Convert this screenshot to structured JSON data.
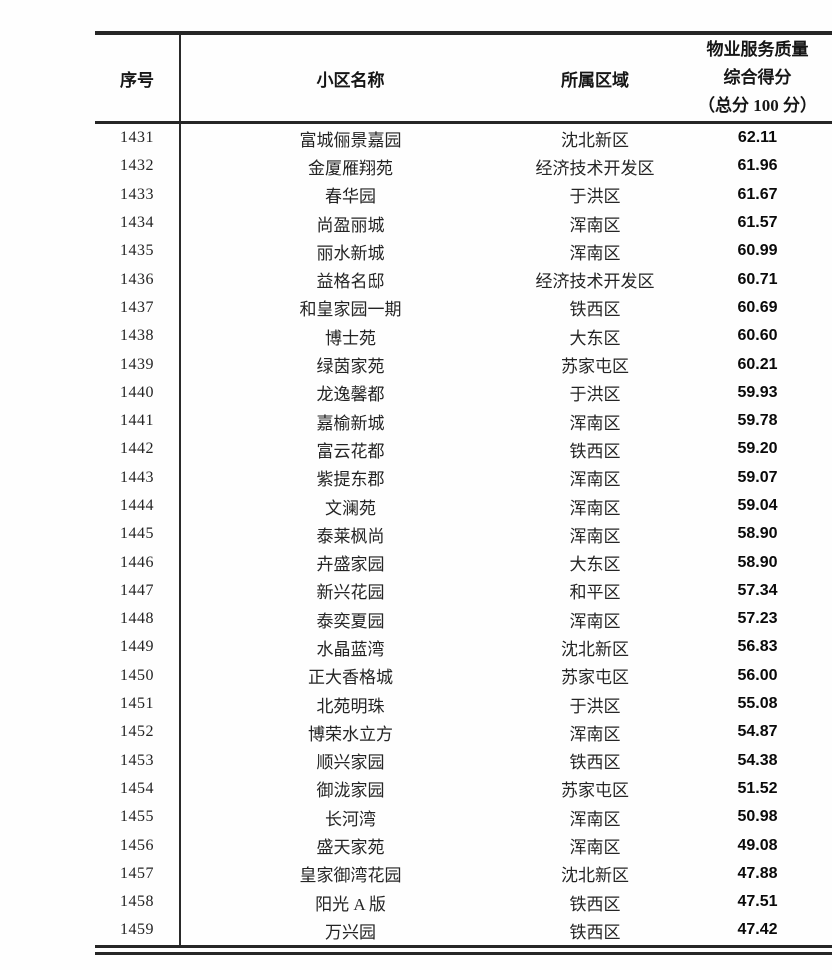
{
  "table": {
    "headers": {
      "rank": "序号",
      "name": "小区名称",
      "district": "所属区域",
      "score_lines": [
        "物业服务质量",
        "综合得分",
        "（总分 100 分）"
      ]
    },
    "rows": [
      {
        "rank": "1431",
        "name": "富城俪景嘉园",
        "district": "沈北新区",
        "score": "62.11"
      },
      {
        "rank": "1432",
        "name": "金厦雁翔苑",
        "district": "经济技术开发区",
        "score": "61.96"
      },
      {
        "rank": "1433",
        "name": "春华园",
        "district": "于洪区",
        "score": "61.67"
      },
      {
        "rank": "1434",
        "name": "尚盈丽城",
        "district": "浑南区",
        "score": "61.57"
      },
      {
        "rank": "1435",
        "name": "丽水新城",
        "district": "浑南区",
        "score": "60.99"
      },
      {
        "rank": "1436",
        "name": "益格名邸",
        "district": "经济技术开发区",
        "score": "60.71"
      },
      {
        "rank": "1437",
        "name": "和皇家园一期",
        "district": "铁西区",
        "score": "60.69"
      },
      {
        "rank": "1438",
        "name": "博士苑",
        "district": "大东区",
        "score": "60.60"
      },
      {
        "rank": "1439",
        "name": "绿茵家苑",
        "district": "苏家屯区",
        "score": "60.21"
      },
      {
        "rank": "1440",
        "name": "龙逸馨都",
        "district": "于洪区",
        "score": "59.93"
      },
      {
        "rank": "1441",
        "name": "嘉榆新城",
        "district": "浑南区",
        "score": "59.78"
      },
      {
        "rank": "1442",
        "name": "富云花都",
        "district": "铁西区",
        "score": "59.20"
      },
      {
        "rank": "1443",
        "name": "紫提东郡",
        "district": "浑南区",
        "score": "59.07"
      },
      {
        "rank": "1444",
        "name": "文澜苑",
        "district": "浑南区",
        "score": "59.04"
      },
      {
        "rank": "1445",
        "name": "泰莱枫尚",
        "district": "浑南区",
        "score": "58.90"
      },
      {
        "rank": "1446",
        "name": "卉盛家园",
        "district": "大东区",
        "score": "58.90"
      },
      {
        "rank": "1447",
        "name": "新兴花园",
        "district": "和平区",
        "score": "57.34"
      },
      {
        "rank": "1448",
        "name": "泰奕夏园",
        "district": "浑南区",
        "score": "57.23"
      },
      {
        "rank": "1449",
        "name": "水晶蓝湾",
        "district": "沈北新区",
        "score": "56.83"
      },
      {
        "rank": "1450",
        "name": "正大香格城",
        "district": "苏家屯区",
        "score": "56.00"
      },
      {
        "rank": "1451",
        "name": "北苑明珠",
        "district": "于洪区",
        "score": "55.08"
      },
      {
        "rank": "1452",
        "name": "博荣水立方",
        "district": "浑南区",
        "score": "54.87"
      },
      {
        "rank": "1453",
        "name": "顺兴家园",
        "district": "铁西区",
        "score": "54.38"
      },
      {
        "rank": "1454",
        "name": "御泷家园",
        "district": "苏家屯区",
        "score": "51.52"
      },
      {
        "rank": "1455",
        "name": "长河湾",
        "district": "浑南区",
        "score": "50.98"
      },
      {
        "rank": "1456",
        "name": "盛天家苑",
        "district": "浑南区",
        "score": "49.08"
      },
      {
        "rank": "1457",
        "name": "皇家御湾花园",
        "district": "沈北新区",
        "score": "47.88"
      },
      {
        "rank": "1458",
        "name": "阳光 A 版",
        "district": "铁西区",
        "score": "47.51"
      },
      {
        "rank": "1459",
        "name": "万兴园",
        "district": "铁西区",
        "score": "47.42"
      }
    ]
  }
}
